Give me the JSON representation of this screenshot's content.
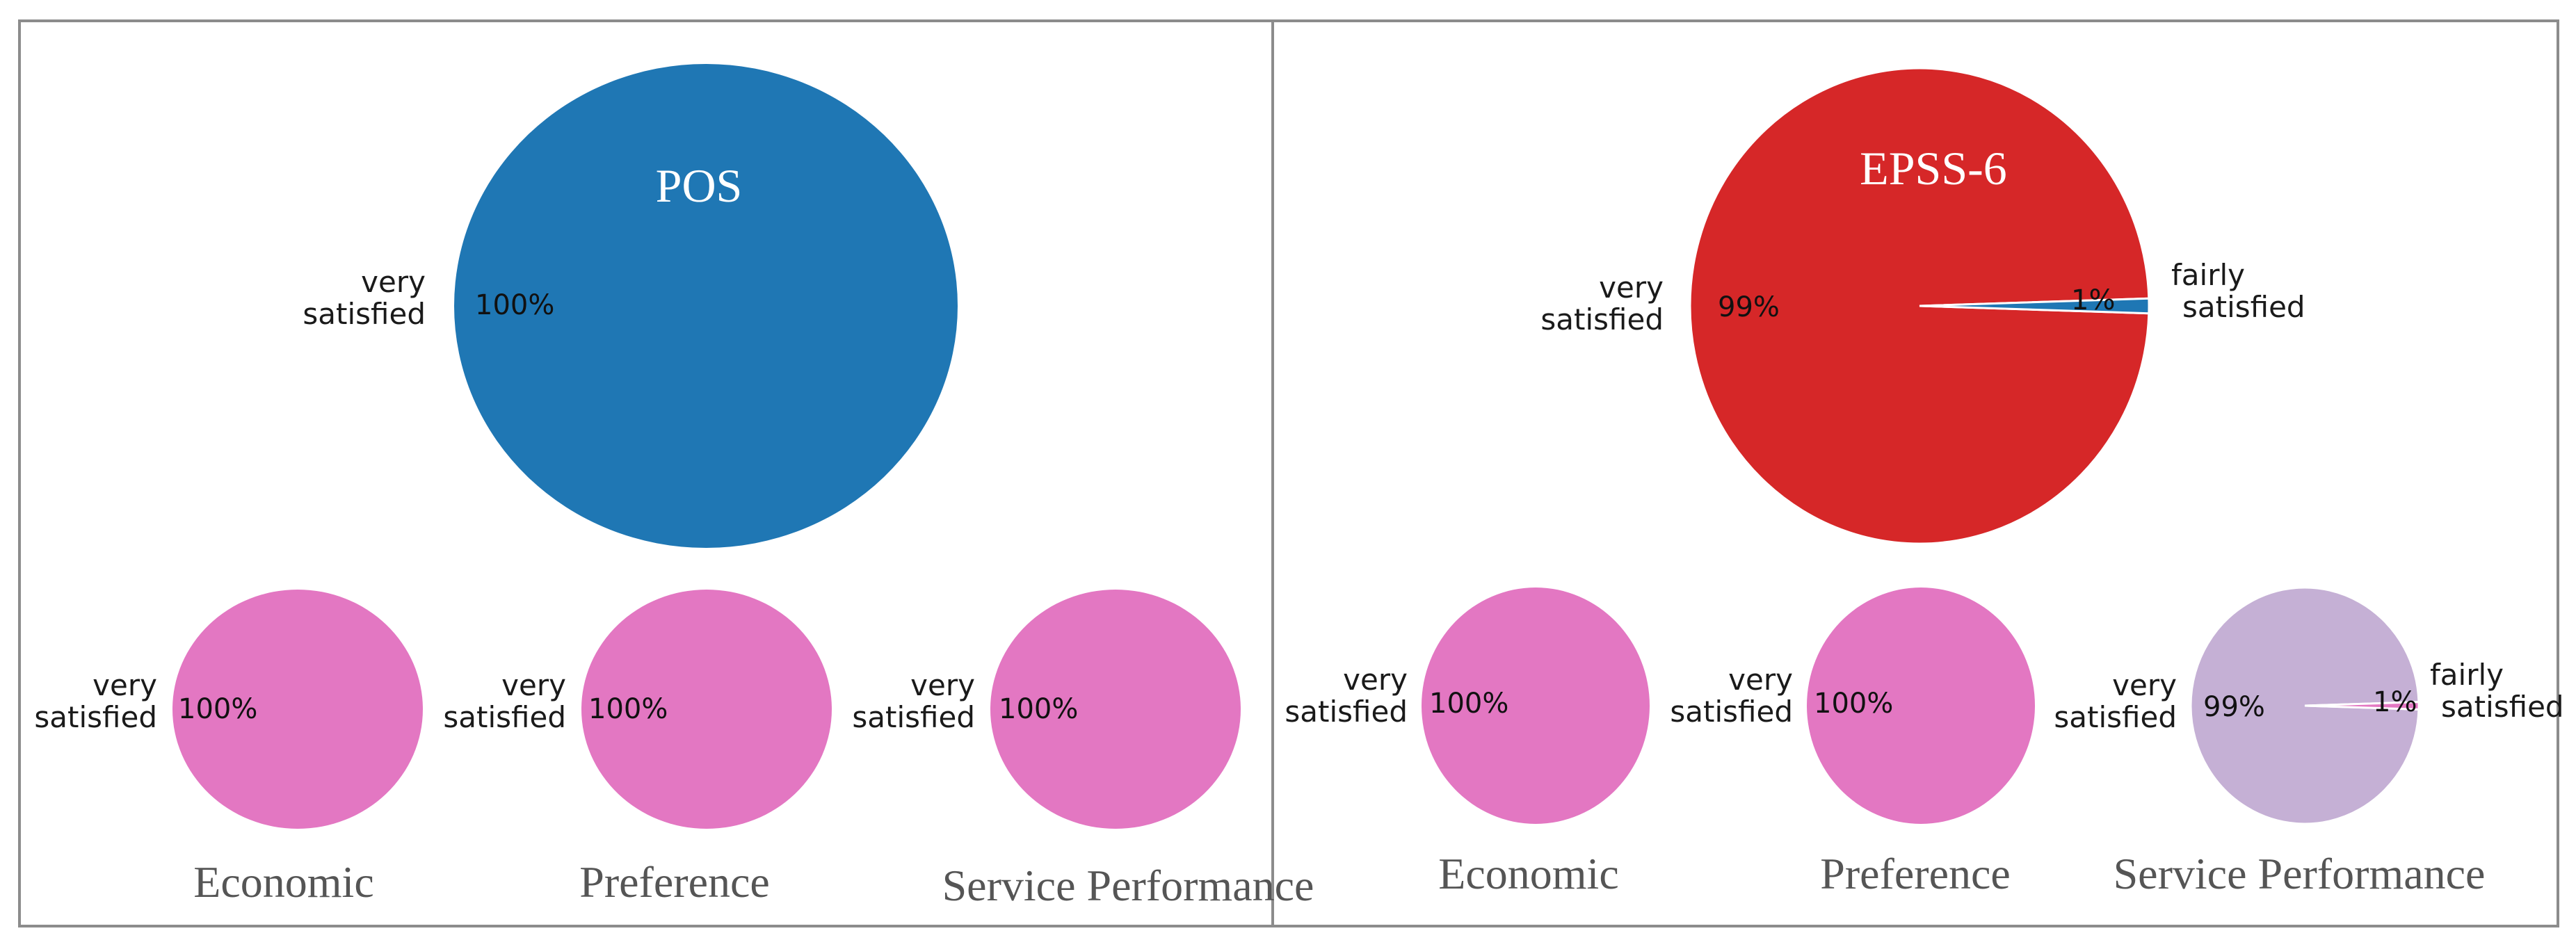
{
  "colors": {
    "pos_main": "#1f77b4",
    "epss_main": "#d62728",
    "pink": "#e377c2",
    "lavender": "#c5b0d5",
    "secondary_slice": "#1f77b4",
    "pink_slice": "#e377c2",
    "frame": "#8c8c8c"
  },
  "chart_data": [
    {
      "panel": "left",
      "type": "pie",
      "title": "POS",
      "role": "main",
      "color_key": "pos_main",
      "slices": [
        {
          "label": "very satisfied",
          "value": 100,
          "pct_label": "100%",
          "color_key": "pos_main"
        }
      ]
    },
    {
      "panel": "left",
      "type": "pie",
      "title": "Economic",
      "role": "sub",
      "color_key": "pink",
      "slices": [
        {
          "label": "very satisfied",
          "value": 100,
          "pct_label": "100%",
          "color_key": "pink"
        }
      ]
    },
    {
      "panel": "left",
      "type": "pie",
      "title": "Preference",
      "role": "sub",
      "color_key": "pink",
      "slices": [
        {
          "label": "very satisfied",
          "value": 100,
          "pct_label": "100%",
          "color_key": "pink"
        }
      ]
    },
    {
      "panel": "left",
      "type": "pie",
      "title": "Service Performance",
      "role": "sub",
      "color_key": "pink",
      "slices": [
        {
          "label": "very satisfied",
          "value": 100,
          "pct_label": "100%",
          "color_key": "pink"
        }
      ]
    },
    {
      "panel": "right",
      "type": "pie",
      "title": "EPSS-6",
      "role": "main",
      "color_key": "epss_main",
      "slices": [
        {
          "label": "very satisfied",
          "value": 99,
          "pct_label": "99%",
          "color_key": "epss_main"
        },
        {
          "label": "fairly satisfied",
          "value": 1,
          "pct_label": "1%",
          "color_key": "secondary_slice"
        }
      ]
    },
    {
      "panel": "right",
      "type": "pie",
      "title": "Economic",
      "role": "sub",
      "color_key": "pink",
      "slices": [
        {
          "label": "very satisfied",
          "value": 100,
          "pct_label": "100%",
          "color_key": "pink"
        }
      ]
    },
    {
      "panel": "right",
      "type": "pie",
      "title": "Preference",
      "role": "sub",
      "color_key": "pink",
      "slices": [
        {
          "label": "very satisfied",
          "value": 100,
          "pct_label": "100%",
          "color_key": "pink"
        }
      ]
    },
    {
      "panel": "right",
      "type": "pie",
      "title": "Service Performance",
      "role": "sub",
      "color_key": "lavender",
      "slices": [
        {
          "label": "very satisfied",
          "value": 99,
          "pct_label": "99%",
          "color_key": "lavender"
        },
        {
          "label": "fairly satisfied",
          "value": 1,
          "pct_label": "1%",
          "color_key": "pink_slice"
        }
      ]
    }
  ]
}
